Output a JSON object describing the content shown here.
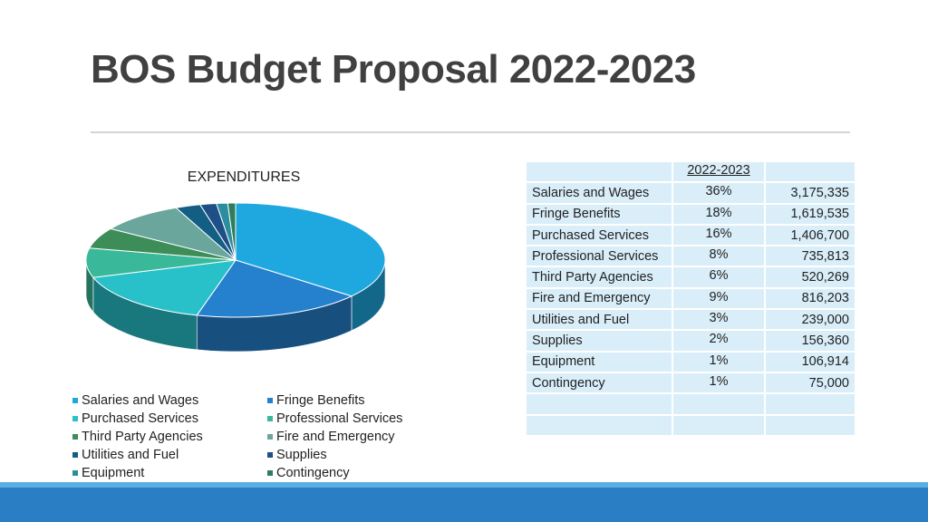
{
  "slide": {
    "title": "BOS Budget Proposal 2022-2023"
  },
  "chart_data": {
    "type": "pie",
    "title": "EXPENDITURES",
    "labels": [
      "Salaries and Wages",
      "Fringe Benefits",
      "Purchased Services",
      "Professional Services",
      "Third Party Agencies",
      "Fire and Emergency",
      "Utilities and Fuel",
      "Supplies",
      "Equipment",
      "Contingency"
    ],
    "values": [
      3175335,
      1619535,
      1406700,
      735813,
      520269,
      816203,
      239000,
      156360,
      106914,
      75000
    ],
    "colors": [
      "#1fa8df",
      "#2581cd",
      "#29c1c9",
      "#3ab89a",
      "#3d8d58",
      "#6aa69c",
      "#135e83",
      "#1e4f87",
      "#2b8ea0",
      "#2e7d5b"
    ],
    "legend_position": "bottom"
  },
  "table": {
    "header": [
      "",
      "2022-2023",
      ""
    ],
    "rows": [
      [
        "Salaries and Wages",
        "36%",
        "3,175,335"
      ],
      [
        "Fringe Benefits",
        "18%",
        "1,619,535"
      ],
      [
        "Purchased Services",
        "16%",
        "1,406,700"
      ],
      [
        "Professional Services",
        "8%",
        "735,813"
      ],
      [
        "Third Party Agencies",
        "6%",
        "520,269"
      ],
      [
        "Fire and Emergency",
        "9%",
        "816,203"
      ],
      [
        "Utilities and Fuel",
        "3%",
        "239,000"
      ],
      [
        "Supplies",
        "2%",
        "156,360"
      ],
      [
        "Equipment",
        "1%",
        "106,914"
      ],
      [
        "Contingency",
        "1%",
        "75,000"
      ],
      [
        "",
        "",
        ""
      ],
      [
        "",
        "",
        ""
      ]
    ]
  }
}
